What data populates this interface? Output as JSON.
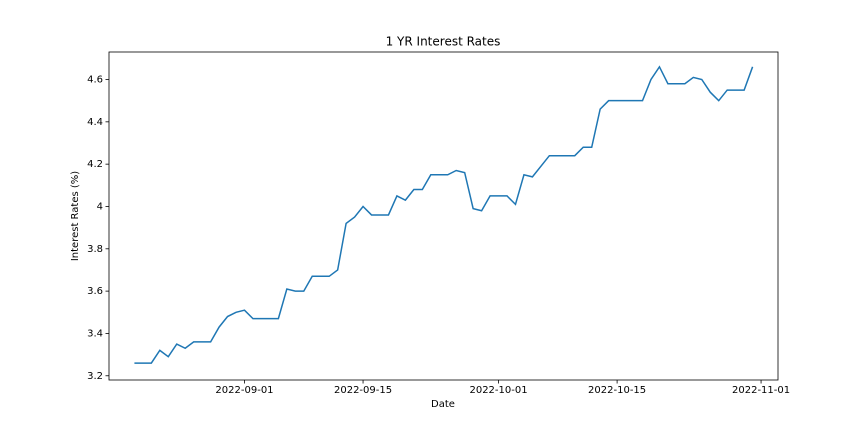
{
  "chart_data": {
    "type": "line",
    "title": "1 YR Interest Rates",
    "x_label": "Date",
    "y_label": "Interest Rates (%)",
    "x": [
      "2022-08-19",
      "2022-08-21",
      "2022-08-22",
      "2022-08-23",
      "2022-08-24",
      "2022-08-25",
      "2022-08-26",
      "2022-08-28",
      "2022-08-29",
      "2022-08-30",
      "2022-08-31",
      "2022-09-01",
      "2022-09-02",
      "2022-09-05",
      "2022-09-06",
      "2022-09-07",
      "2022-09-08",
      "2022-09-09",
      "2022-09-11",
      "2022-09-12",
      "2022-09-13",
      "2022-09-14",
      "2022-09-15",
      "2022-09-16",
      "2022-09-18",
      "2022-09-19",
      "2022-09-20",
      "2022-09-21",
      "2022-09-22",
      "2022-09-23",
      "2022-09-25",
      "2022-09-26",
      "2022-09-27",
      "2022-09-28",
      "2022-09-29",
      "2022-09-30",
      "2022-10-02",
      "2022-10-03",
      "2022-10-04",
      "2022-10-05",
      "2022-10-07",
      "2022-10-10",
      "2022-10-11",
      "2022-10-12",
      "2022-10-13",
      "2022-10-14",
      "2022-10-18",
      "2022-10-19",
      "2022-10-20",
      "2022-10-21",
      "2022-10-23",
      "2022-10-24",
      "2022-10-25",
      "2022-10-26",
      "2022-10-27",
      "2022-10-28",
      "2022-10-30",
      "2022-10-31"
    ],
    "series": [
      {
        "name": "1 YR",
        "color": "#1f77b4",
        "values": [
          3.26,
          3.26,
          3.32,
          3.29,
          3.35,
          3.33,
          3.36,
          3.36,
          3.43,
          3.48,
          3.5,
          3.51,
          3.47,
          3.47,
          3.61,
          3.6,
          3.6,
          3.67,
          3.67,
          3.7,
          3.92,
          3.95,
          4.0,
          3.96,
          3.96,
          4.05,
          4.03,
          4.08,
          4.08,
          4.15,
          4.15,
          4.17,
          4.16,
          3.99,
          3.98,
          4.05,
          4.05,
          4.01,
          4.15,
          4.14,
          4.24,
          4.24,
          4.28,
          4.28,
          4.46,
          4.5,
          4.5,
          4.6,
          4.66,
          4.58,
          4.58,
          4.61,
          4.6,
          4.54,
          4.5,
          4.55,
          4.55,
          4.66
        ]
      }
    ],
    "xlim": [
      "2022-08-16",
      "2022-11-03"
    ],
    "xticks": [
      "2022-09-01",
      "2022-09-15",
      "2022-10-01",
      "2022-10-15",
      "2022-11-01"
    ],
    "ylim": [
      3.18,
      4.73
    ],
    "yticks": [
      3.2,
      3.4,
      3.6,
      3.8,
      4.0,
      4.2,
      4.4,
      4.6
    ],
    "grid": false
  }
}
